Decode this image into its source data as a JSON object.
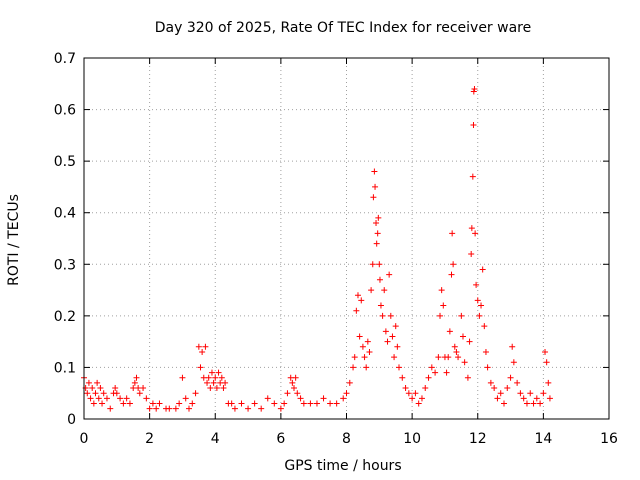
{
  "colors": {
    "series": "#ff0000",
    "axis": "#000000",
    "grid": "#a0a0a0",
    "background": "#ffffff"
  },
  "chart_data": {
    "type": "scatter",
    "title": "Day 320 of 2025, Rate Of TEC Index for receiver ware",
    "xlabel": "GPS time / hours",
    "ylabel": "ROTI / TECUs",
    "xlim": [
      0,
      16
    ],
    "ylim": [
      0,
      0.7
    ],
    "xticks": [
      0,
      2,
      4,
      6,
      8,
      10,
      12,
      14,
      16
    ],
    "xtick_labels": [
      "0",
      "2",
      "4",
      "6",
      "8",
      "10",
      "12",
      "14",
      "16"
    ],
    "yticks": [
      0,
      0.1,
      0.2,
      0.3,
      0.4,
      0.5,
      0.6,
      0.7
    ],
    "ytick_labels": [
      "0",
      "0.1",
      "0.2",
      "0.3",
      "0.4",
      "0.5",
      "0.6",
      "0.7"
    ],
    "grid": true,
    "marker": "+",
    "series": [
      {
        "name": "ROTI",
        "points": [
          [
            0.0,
            0.08
          ],
          [
            0.05,
            0.06
          ],
          [
            0.1,
            0.05
          ],
          [
            0.15,
            0.07
          ],
          [
            0.2,
            0.04
          ],
          [
            0.25,
            0.06
          ],
          [
            0.3,
            0.03
          ],
          [
            0.35,
            0.05
          ],
          [
            0.4,
            0.07
          ],
          [
            0.45,
            0.04
          ],
          [
            0.5,
            0.06
          ],
          [
            0.55,
            0.03
          ],
          [
            0.6,
            0.05
          ],
          [
            0.7,
            0.04
          ],
          [
            0.8,
            0.02
          ],
          [
            0.9,
            0.05
          ],
          [
            0.95,
            0.06
          ],
          [
            1.0,
            0.05
          ],
          [
            1.1,
            0.04
          ],
          [
            1.2,
            0.03
          ],
          [
            1.3,
            0.04
          ],
          [
            1.4,
            0.03
          ],
          [
            1.5,
            0.06
          ],
          [
            1.55,
            0.07
          ],
          [
            1.6,
            0.08
          ],
          [
            1.65,
            0.06
          ],
          [
            1.7,
            0.05
          ],
          [
            1.8,
            0.06
          ],
          [
            1.9,
            0.04
          ],
          [
            2.0,
            0.02
          ],
          [
            2.1,
            0.03
          ],
          [
            2.2,
            0.02
          ],
          [
            2.3,
            0.03
          ],
          [
            2.5,
            0.02
          ],
          [
            2.6,
            0.02
          ],
          [
            2.8,
            0.02
          ],
          [
            2.9,
            0.03
          ],
          [
            3.0,
            0.08
          ],
          [
            3.1,
            0.04
          ],
          [
            3.2,
            0.02
          ],
          [
            3.3,
            0.03
          ],
          [
            3.4,
            0.05
          ],
          [
            3.5,
            0.14
          ],
          [
            3.55,
            0.1
          ],
          [
            3.6,
            0.13
          ],
          [
            3.65,
            0.08
          ],
          [
            3.7,
            0.14
          ],
          [
            3.75,
            0.07
          ],
          [
            3.8,
            0.08
          ],
          [
            3.85,
            0.06
          ],
          [
            3.9,
            0.09
          ],
          [
            3.95,
            0.07
          ],
          [
            4.0,
            0.08
          ],
          [
            4.05,
            0.06
          ],
          [
            4.1,
            0.09
          ],
          [
            4.15,
            0.07
          ],
          [
            4.2,
            0.08
          ],
          [
            4.25,
            0.06
          ],
          [
            4.3,
            0.07
          ],
          [
            4.4,
            0.03
          ],
          [
            4.5,
            0.03
          ],
          [
            4.6,
            0.02
          ],
          [
            4.8,
            0.03
          ],
          [
            5.0,
            0.02
          ],
          [
            5.2,
            0.03
          ],
          [
            5.4,
            0.02
          ],
          [
            5.6,
            0.04
          ],
          [
            5.8,
            0.03
          ],
          [
            6.0,
            0.02
          ],
          [
            6.1,
            0.03
          ],
          [
            6.2,
            0.05
          ],
          [
            6.3,
            0.08
          ],
          [
            6.35,
            0.07
          ],
          [
            6.4,
            0.06
          ],
          [
            6.45,
            0.08
          ],
          [
            6.5,
            0.05
          ],
          [
            6.6,
            0.04
          ],
          [
            6.7,
            0.03
          ],
          [
            6.9,
            0.03
          ],
          [
            7.1,
            0.03
          ],
          [
            7.3,
            0.04
          ],
          [
            7.5,
            0.03
          ],
          [
            7.7,
            0.03
          ],
          [
            7.9,
            0.04
          ],
          [
            8.0,
            0.05
          ],
          [
            8.1,
            0.07
          ],
          [
            8.2,
            0.1
          ],
          [
            8.25,
            0.12
          ],
          [
            8.3,
            0.21
          ],
          [
            8.35,
            0.24
          ],
          [
            8.4,
            0.16
          ],
          [
            8.45,
            0.23
          ],
          [
            8.5,
            0.14
          ],
          [
            8.55,
            0.12
          ],
          [
            8.6,
            0.1
          ],
          [
            8.65,
            0.15
          ],
          [
            8.7,
            0.13
          ],
          [
            8.75,
            0.25
          ],
          [
            8.8,
            0.3
          ],
          [
            8.82,
            0.43
          ],
          [
            8.85,
            0.48
          ],
          [
            8.87,
            0.45
          ],
          [
            8.9,
            0.38
          ],
          [
            8.92,
            0.34
          ],
          [
            8.95,
            0.36
          ],
          [
            8.97,
            0.39
          ],
          [
            9.0,
            0.3
          ],
          [
            9.02,
            0.27
          ],
          [
            9.05,
            0.22
          ],
          [
            9.1,
            0.2
          ],
          [
            9.15,
            0.25
          ],
          [
            9.2,
            0.17
          ],
          [
            9.25,
            0.15
          ],
          [
            9.3,
            0.28
          ],
          [
            9.35,
            0.2
          ],
          [
            9.4,
            0.16
          ],
          [
            9.45,
            0.12
          ],
          [
            9.5,
            0.18
          ],
          [
            9.55,
            0.14
          ],
          [
            9.6,
            0.1
          ],
          [
            9.7,
            0.08
          ],
          [
            9.8,
            0.06
          ],
          [
            9.9,
            0.05
          ],
          [
            10.0,
            0.04
          ],
          [
            10.1,
            0.05
          ],
          [
            10.2,
            0.03
          ],
          [
            10.3,
            0.04
          ],
          [
            10.4,
            0.06
          ],
          [
            10.5,
            0.08
          ],
          [
            10.6,
            0.1
          ],
          [
            10.7,
            0.09
          ],
          [
            10.8,
            0.12
          ],
          [
            10.85,
            0.2
          ],
          [
            10.9,
            0.25
          ],
          [
            10.95,
            0.22
          ],
          [
            11.0,
            0.12
          ],
          [
            11.05,
            0.09
          ],
          [
            11.1,
            0.12
          ],
          [
            11.15,
            0.17
          ],
          [
            11.2,
            0.28
          ],
          [
            11.22,
            0.36
          ],
          [
            11.25,
            0.3
          ],
          [
            11.3,
            0.14
          ],
          [
            11.35,
            0.13
          ],
          [
            11.4,
            0.12
          ],
          [
            11.5,
            0.2
          ],
          [
            11.55,
            0.16
          ],
          [
            11.6,
            0.11
          ],
          [
            11.7,
            0.08
          ],
          [
            11.75,
            0.15
          ],
          [
            11.8,
            0.32
          ],
          [
            11.82,
            0.37
          ],
          [
            11.85,
            0.47
          ],
          [
            11.87,
            0.57
          ],
          [
            11.88,
            0.635
          ],
          [
            11.9,
            0.64
          ],
          [
            11.92,
            0.36
          ],
          [
            11.95,
            0.26
          ],
          [
            12.0,
            0.23
          ],
          [
            12.05,
            0.2
          ],
          [
            12.1,
            0.22
          ],
          [
            12.15,
            0.29
          ],
          [
            12.2,
            0.18
          ],
          [
            12.25,
            0.13
          ],
          [
            12.3,
            0.1
          ],
          [
            12.4,
            0.07
          ],
          [
            12.5,
            0.06
          ],
          [
            12.6,
            0.04
          ],
          [
            12.7,
            0.05
          ],
          [
            12.8,
            0.03
          ],
          [
            12.9,
            0.06
          ],
          [
            13.0,
            0.08
          ],
          [
            13.05,
            0.14
          ],
          [
            13.1,
            0.11
          ],
          [
            13.2,
            0.07
          ],
          [
            13.3,
            0.05
          ],
          [
            13.4,
            0.04
          ],
          [
            13.5,
            0.03
          ],
          [
            13.6,
            0.05
          ],
          [
            13.7,
            0.03
          ],
          [
            13.8,
            0.04
          ],
          [
            13.9,
            0.03
          ],
          [
            14.0,
            0.05
          ],
          [
            14.05,
            0.13
          ],
          [
            14.1,
            0.11
          ],
          [
            14.15,
            0.07
          ],
          [
            14.2,
            0.04
          ]
        ]
      }
    ]
  }
}
